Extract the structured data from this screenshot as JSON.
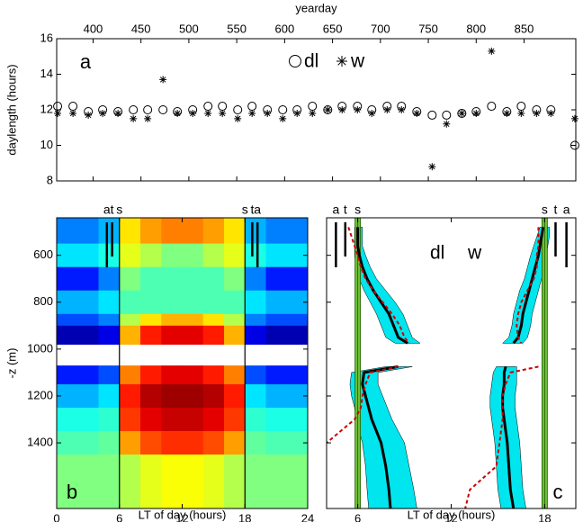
{
  "chart_data": [
    {
      "type": "scatter",
      "panel_label": "a",
      "xlabel": "yearday",
      "ylabel": "daylength (hours)",
      "xaxis_position": "top",
      "x": [
        363,
        379,
        395,
        410,
        426,
        442,
        457,
        473,
        488,
        504,
        520,
        535,
        551,
        566,
        582,
        598,
        613,
        629,
        645,
        660,
        676,
        691,
        707,
        722,
        738,
        754,
        769,
        785,
        800,
        816,
        832,
        847,
        863,
        878,
        903
      ],
      "series": [
        {
          "name": "dl",
          "marker": "o",
          "color": "#000000",
          "values": [
            12.2,
            12.2,
            11.9,
            12.0,
            11.9,
            12.0,
            12.0,
            12.0,
            11.9,
            12.0,
            12.2,
            12.2,
            12.0,
            12.2,
            12.0,
            12.0,
            12.0,
            12.2,
            12.0,
            12.2,
            12.2,
            12.0,
            12.2,
            12.2,
            11.9,
            11.7,
            11.7,
            11.8,
            11.9,
            12.2,
            11.9,
            12.2,
            12.0,
            12.0,
            10.0
          ]
        },
        {
          "name": "w",
          "marker": "*",
          "color": "#000000",
          "values": [
            11.8,
            11.8,
            11.7,
            11.8,
            11.8,
            11.5,
            11.5,
            13.7,
            11.8,
            11.8,
            11.8,
            11.8,
            11.5,
            11.8,
            11.8,
            11.5,
            11.8,
            11.8,
            12.0,
            12.0,
            12.0,
            11.8,
            12.0,
            12.0,
            11.8,
            8.8,
            11.2,
            11.8,
            11.8,
            15.3,
            11.8,
            11.8,
            11.8,
            11.8,
            11.5
          ]
        }
      ],
      "xlim": [
        362,
        904
      ],
      "xticks": [
        400,
        450,
        500,
        550,
        600,
        650,
        700,
        750,
        800,
        850
      ],
      "ylim": [
        8,
        16
      ],
      "yticks": [
        8,
        10,
        12,
        14,
        16
      ]
    },
    {
      "type": "heatmap",
      "panel_label": "b",
      "xlabel": "LT of day (hours)",
      "ylabel": "-z (m)",
      "colormap": "jet",
      "y_reversed": true,
      "x_edges": [
        0,
        2,
        4,
        6,
        8,
        10,
        12,
        14,
        16,
        18,
        20,
        22,
        24
      ],
      "y_edges": [
        440,
        550,
        650,
        750,
        850,
        900,
        980,
        1070,
        1150,
        1250,
        1350,
        1450,
        1680
      ],
      "values": [
        [
          0.25,
          0.25,
          0.3,
          0.65,
          0.72,
          0.75,
          0.75,
          0.72,
          0.65,
          0.3,
          0.25,
          0.25
        ],
        [
          0.35,
          0.35,
          0.4,
          0.6,
          0.55,
          0.5,
          0.5,
          0.55,
          0.6,
          0.4,
          0.35,
          0.35
        ],
        [
          0.15,
          0.15,
          0.25,
          0.5,
          0.45,
          0.45,
          0.45,
          0.45,
          0.5,
          0.25,
          0.15,
          0.15
        ],
        [
          0.3,
          0.3,
          0.35,
          0.45,
          0.45,
          0.45,
          0.45,
          0.45,
          0.45,
          0.35,
          0.3,
          0.3
        ],
        [
          0.2,
          0.2,
          0.25,
          0.55,
          0.65,
          0.7,
          0.7,
          0.65,
          0.55,
          0.25,
          0.2,
          0.2
        ],
        [
          0.05,
          0.05,
          0.1,
          0.7,
          0.85,
          0.9,
          0.9,
          0.85,
          0.7,
          0.1,
          0.05,
          0.05
        ],
        [
          null,
          null,
          null,
          null,
          null,
          null,
          null,
          null,
          null,
          null,
          null,
          null
        ],
        [
          0.15,
          0.15,
          0.2,
          0.75,
          0.85,
          0.9,
          0.9,
          0.85,
          0.75,
          0.2,
          0.15,
          0.15
        ],
        [
          0.3,
          0.3,
          0.35,
          0.85,
          0.95,
          0.97,
          0.97,
          0.95,
          0.85,
          0.35,
          0.3,
          0.3
        ],
        [
          0.4,
          0.4,
          0.42,
          0.82,
          0.9,
          0.93,
          0.93,
          0.9,
          0.82,
          0.42,
          0.4,
          0.4
        ],
        [
          0.45,
          0.45,
          0.47,
          0.72,
          0.8,
          0.83,
          0.83,
          0.8,
          0.72,
          0.47,
          0.45,
          0.45
        ],
        [
          0.5,
          0.5,
          0.5,
          0.55,
          0.6,
          0.62,
          0.62,
          0.6,
          0.55,
          0.5,
          0.5,
          0.5
        ]
      ],
      "twilight": [
        {
          "label": "a",
          "x": 4.8,
          "style": "long"
        },
        {
          "label": "t",
          "x": 5.3,
          "style": "short"
        },
        {
          "label": "s",
          "x": 6,
          "style": "full"
        },
        {
          "label": "s",
          "x": 18,
          "style": "full"
        },
        {
          "label": "t",
          "x": 18.7,
          "style": "short"
        },
        {
          "label": "a",
          "x": 19.2,
          "style": "long"
        }
      ],
      "xlim": [
        0,
        24
      ],
      "xticks": [
        0,
        6,
        12,
        18,
        24
      ],
      "ylim": [
        440,
        1680
      ],
      "yticks": [
        600,
        800,
        1000,
        1200,
        1400
      ]
    },
    {
      "type": "profile",
      "panel_label": "c",
      "xlabel": "LT of day (hours)",
      "y_reversed": true,
      "ytick_labels": false,
      "band_color": "#00e5ee",
      "y": [
        480,
        520,
        560,
        600,
        650,
        700,
        750,
        800,
        850,
        900,
        950,
        975,
        1025,
        1075,
        1100,
        1150,
        1200,
        1250,
        1300,
        1350,
        1400,
        1500,
        1600,
        1680
      ],
      "series": [
        {
          "name": "dl",
          "color": "#000000",
          "dash": false,
          "dawn": [
            6.0,
            6.0,
            6.0,
            6.1,
            6.3,
            6.6,
            7.0,
            7.5,
            8.0,
            8.3,
            8.6,
            9.2,
            null,
            8.6,
            6.4,
            6.3,
            6.5,
            6.7,
            6.9,
            7.2,
            7.5,
            7.8,
            8.0,
            8.1
          ],
          "dawn_lower": [
            5.8,
            5.8,
            5.8,
            5.8,
            5.9,
            6.1,
            6.4,
            6.8,
            7.2,
            7.5,
            7.8,
            8.4,
            null,
            7.8,
            5.6,
            5.5,
            5.6,
            5.8,
            5.9,
            6.1,
            6.3,
            6.5,
            6.6,
            6.7
          ],
          "dawn_upper": [
            6.3,
            6.3,
            6.3,
            6.5,
            6.8,
            7.2,
            7.8,
            8.4,
            8.9,
            9.2,
            9.5,
            10.0,
            null,
            9.5,
            7.3,
            7.3,
            7.6,
            7.9,
            8.2,
            8.6,
            9.0,
            9.3,
            9.6,
            9.8
          ],
          "dusk": [
            17.9,
            17.8,
            17.7,
            17.6,
            17.4,
            17.2,
            17.0,
            16.8,
            16.6,
            16.5,
            16.3,
            16.0,
            null,
            15.5,
            15.4,
            15.4,
            15.3,
            15.3,
            15.4,
            15.5,
            15.6,
            15.7,
            15.8,
            16.0
          ],
          "dusk_lower": [
            17.7,
            17.5,
            17.3,
            17.1,
            16.9,
            16.7,
            16.4,
            16.2,
            16.0,
            15.9,
            15.7,
            15.3,
            null,
            14.9,
            14.7,
            14.6,
            14.5,
            14.5,
            14.6,
            14.7,
            14.8,
            14.9,
            15.0,
            15.2
          ],
          "dusk_upper": [
            18.3,
            18.3,
            18.2,
            18.1,
            18.0,
            17.8,
            17.6,
            17.4,
            17.2,
            17.1,
            16.9,
            16.6,
            null,
            16.2,
            16.2,
            16.2,
            16.1,
            16.1,
            16.2,
            16.3,
            16.4,
            16.5,
            16.6,
            16.8
          ]
        },
        {
          "name": "w",
          "color": "#cc0000",
          "dash": true,
          "dawn": [
            5.4,
            5.6,
            5.8,
            6.0,
            6.2,
            6.5,
            7.0,
            7.6,
            8.2,
            8.7,
            9.0,
            9.3,
            null,
            8.6,
            6.8,
            6.5,
            6.3,
            6.2,
            5.8,
            4.9,
            4.0,
            null,
            null,
            null
          ],
          "dusk": [
            17.6,
            17.6,
            17.6,
            17.5,
            17.5,
            17.3,
            16.9,
            16.5,
            16.3,
            16.2,
            16.3,
            16.5,
            null,
            17.6,
            15.8,
            15.5,
            15.3,
            15.3,
            15.3,
            15.2,
            15.1,
            14.9,
            13.2,
            12.9
          ]
        }
      ],
      "twilight": [
        {
          "label": "a",
          "x": 4.6,
          "style": "long"
        },
        {
          "label": "t",
          "x": 5.2,
          "style": "short"
        },
        {
          "label": "s",
          "x": 6,
          "style": "full"
        },
        {
          "label": "s",
          "x": 18,
          "style": "full"
        },
        {
          "label": "t",
          "x": 18.7,
          "style": "short"
        },
        {
          "label": "a",
          "x": 19.4,
          "style": "long"
        }
      ],
      "xlim": [
        4,
        20
      ],
      "xticks": [
        6,
        12,
        18
      ],
      "ylim": [
        440,
        1680
      ],
      "yticks": [
        600,
        800,
        1000,
        1200,
        1400
      ]
    }
  ]
}
